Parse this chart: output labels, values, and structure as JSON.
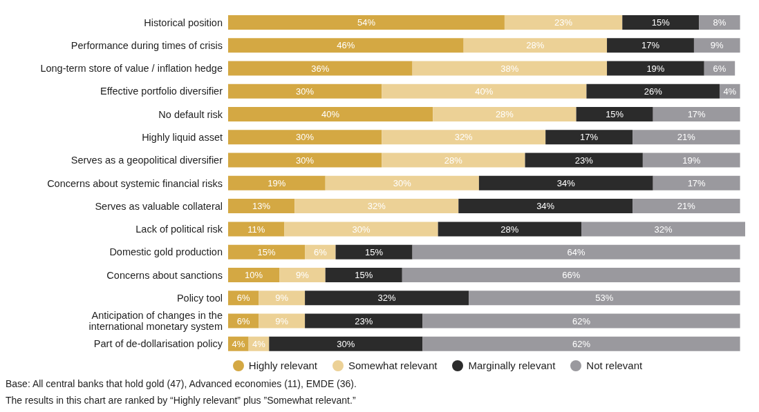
{
  "chart_data": {
    "type": "bar",
    "orientation": "horizontal",
    "stacked": true,
    "legend": "bottom",
    "xlim": [
      0,
      101
    ],
    "categories": [
      "Historical position",
      "Performance during times of crisis",
      "Long-term store of value / inflation hedge",
      "Effective portfolio diversifier",
      "No default risk",
      "Highly liquid asset",
      "Serves as a geopolitical diversifier",
      "Concerns about systemic financial risks",
      "Serves as valuable collateral",
      "Lack of political risk",
      "Domestic gold production",
      "Concerns about sanctions",
      "Policy tool",
      "Anticipation of changes in the international monetary system",
      "Part of de-dollarisation policy"
    ],
    "series": [
      {
        "name": "Highly relevant",
        "color": "#d4a843",
        "values": [
          54,
          46,
          36,
          30,
          40,
          30,
          30,
          19,
          13,
          11,
          15,
          10,
          6,
          6,
          4
        ],
        "value_labels": [
          "54%",
          "46%",
          "36%",
          "30%",
          "40%",
          "30%",
          "30%",
          "19%",
          "13%",
          "11%",
          "15%",
          "10%",
          "6%",
          "6%",
          "4%"
        ]
      },
      {
        "name": "Somewhat relevant",
        "color": "#ecd196",
        "values": [
          23,
          28,
          38,
          40,
          28,
          32,
          28,
          30,
          32,
          30,
          6,
          9,
          9,
          9,
          4
        ],
        "value_labels": [
          "23%",
          "28%",
          "38%",
          "40%",
          "28%",
          "32%",
          "28%",
          "30%",
          "32%",
          "30%",
          "6%",
          "9%",
          "9%",
          "9%",
          "4%"
        ]
      },
      {
        "name": "Marginally relevant",
        "color": "#2b2b2b",
        "values": [
          15,
          17,
          19,
          26,
          15,
          17,
          23,
          34,
          34,
          28,
          15,
          15,
          32,
          23,
          30
        ],
        "value_labels": [
          "15%",
          "17%",
          "19%",
          "26%",
          "15%",
          "17%",
          "23%",
          "34%",
          "34%",
          "28%",
          "15%",
          "15%",
          "32%",
          "23%",
          "30%"
        ]
      },
      {
        "name": "Not relevant",
        "color": "#9a999e",
        "values": [
          8,
          9,
          6,
          4,
          17,
          21,
          19,
          17,
          21,
          32,
          64,
          66,
          53,
          62,
          62
        ],
        "value_labels": [
          "8%",
          "9%",
          "6%",
          "4%",
          "17%",
          "21%",
          "19%",
          "17%",
          "21%",
          "32%",
          "64%",
          "66%",
          "53%",
          "62%",
          "62%"
        ]
      }
    ],
    "annotations": [
      "Base: All central banks that hold gold (47), Advanced economies (11), EMDE (36).",
      "The results in this chart are ranked by “Highly relevant” plus ”Somewhat relevant.”"
    ]
  }
}
